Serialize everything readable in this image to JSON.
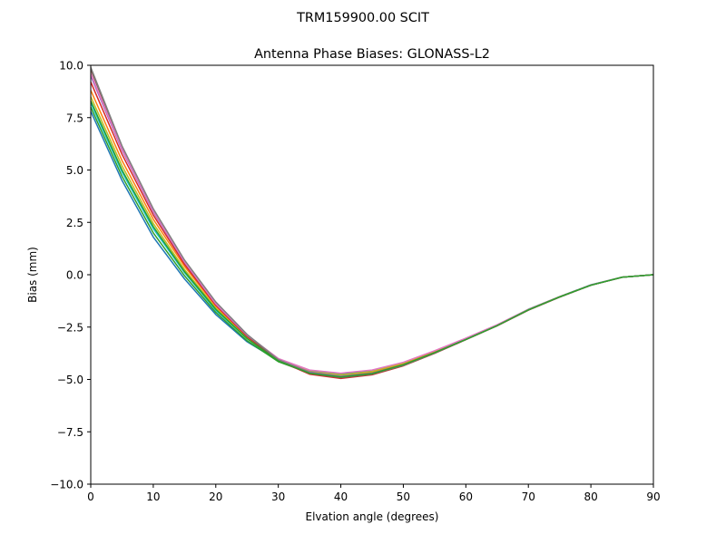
{
  "figure": {
    "suptitle": "TRM159900.00    SCIT"
  },
  "chart_data": {
    "type": "line",
    "title": "Antenna Phase Biases: GLONASS-L2",
    "xlabel": "Elvation angle (degrees)",
    "ylabel": "Bias (mm)",
    "xlim": [
      0,
      90
    ],
    "ylim": [
      -10,
      10
    ],
    "xticks": [
      0,
      10,
      20,
      30,
      40,
      50,
      60,
      70,
      80,
      90
    ],
    "xtick_labels": [
      "0",
      "10",
      "20",
      "30",
      "40",
      "50",
      "60",
      "70",
      "80",
      "90"
    ],
    "yticks": [
      10,
      7.5,
      5,
      2.5,
      0,
      -2.5,
      -5,
      -7.5,
      -10
    ],
    "ytick_labels": [
      "10.0",
      "7.5",
      "5.0",
      "2.5",
      "0.0",
      "−2.5",
      "−5.0",
      "−7.5",
      "−10.0"
    ],
    "grid": false,
    "legend": "none",
    "x": [
      0,
      5,
      10,
      15,
      20,
      25,
      30,
      35,
      40,
      45,
      50,
      55,
      60,
      65,
      70,
      75,
      80,
      85,
      90
    ],
    "series": [
      {
        "color": "#1f77b4",
        "values": [
          7.8,
          4.5,
          1.8,
          -0.2,
          -1.9,
          -3.2,
          -4.1,
          -4.6,
          -4.75,
          -4.6,
          -4.2,
          -3.65,
          -3.05,
          -2.4,
          -1.65,
          -1.05,
          -0.48,
          -0.12,
          0.0
        ]
      },
      {
        "color": "#2ca02c",
        "values": [
          8.0,
          4.7,
          2.0,
          -0.05,
          -1.8,
          -3.15,
          -4.15,
          -4.7,
          -4.85,
          -4.7,
          -4.3,
          -3.7,
          -3.08,
          -2.42,
          -1.68,
          -1.06,
          -0.5,
          -0.12,
          0.0
        ]
      },
      {
        "color": "#17becf",
        "values": [
          8.2,
          4.9,
          2.2,
          0.1,
          -1.7,
          -3.05,
          -4.1,
          -4.65,
          -4.8,
          -4.65,
          -4.25,
          -3.68,
          -3.06,
          -2.41,
          -1.67,
          -1.06,
          -0.49,
          -0.12,
          0.0
        ]
      },
      {
        "color": "#bcbd22",
        "values": [
          8.5,
          5.2,
          2.45,
          0.25,
          -1.6,
          -3.0,
          -4.05,
          -4.62,
          -4.78,
          -4.62,
          -4.22,
          -3.66,
          -3.05,
          -2.4,
          -1.66,
          -1.05,
          -0.49,
          -0.12,
          0.0
        ]
      },
      {
        "color": "#ff7f0e",
        "values": [
          8.8,
          5.45,
          2.65,
          0.4,
          -1.5,
          -2.95,
          -4.05,
          -4.65,
          -4.85,
          -4.68,
          -4.28,
          -3.7,
          -3.08,
          -2.42,
          -1.68,
          -1.06,
          -0.5,
          -0.12,
          0.0
        ]
      },
      {
        "color": "#d62728",
        "values": [
          9.2,
          5.75,
          2.85,
          0.5,
          -1.45,
          -2.95,
          -4.1,
          -4.75,
          -4.95,
          -4.78,
          -4.35,
          -3.75,
          -3.1,
          -2.44,
          -1.69,
          -1.07,
          -0.5,
          -0.12,
          0.0
        ]
      },
      {
        "color": "#9467bd",
        "values": [
          9.5,
          5.95,
          3.0,
          0.6,
          -1.4,
          -2.9,
          -4.05,
          -4.65,
          -4.85,
          -4.7,
          -4.3,
          -3.72,
          -3.08,
          -2.43,
          -1.68,
          -1.06,
          -0.5,
          -0.12,
          0.0
        ]
      },
      {
        "color": "#8c564b",
        "values": [
          9.8,
          6.1,
          3.1,
          0.65,
          -1.35,
          -2.9,
          -4.1,
          -4.72,
          -4.92,
          -4.76,
          -4.34,
          -3.75,
          -3.1,
          -2.44,
          -1.69,
          -1.07,
          -0.5,
          -0.12,
          0.0
        ]
      },
      {
        "color": "#e377c2",
        "values": [
          9.6,
          6.0,
          3.05,
          0.62,
          -1.38,
          -2.88,
          -4.0,
          -4.55,
          -4.7,
          -4.55,
          -4.18,
          -3.63,
          -3.03,
          -2.39,
          -1.66,
          -1.05,
          -0.49,
          -0.12,
          0.0
        ]
      },
      {
        "color": "#7f7f7f",
        "values": [
          9.9,
          6.15,
          3.15,
          0.7,
          -1.3,
          -2.85,
          -4.05,
          -4.68,
          -4.88,
          -4.72,
          -4.32,
          -3.73,
          -3.09,
          -2.43,
          -1.68,
          -1.06,
          -0.5,
          -0.12,
          0.0
        ]
      },
      {
        "color": "#2ca02c",
        "values": [
          8.3,
          5.0,
          2.3,
          0.15,
          -1.65,
          -3.05,
          -4.12,
          -4.7,
          -4.88,
          -4.72,
          -4.3,
          -3.72,
          -3.09,
          -2.43,
          -1.68,
          -1.06,
          -0.5,
          -0.12,
          0.0
        ]
      }
    ]
  }
}
